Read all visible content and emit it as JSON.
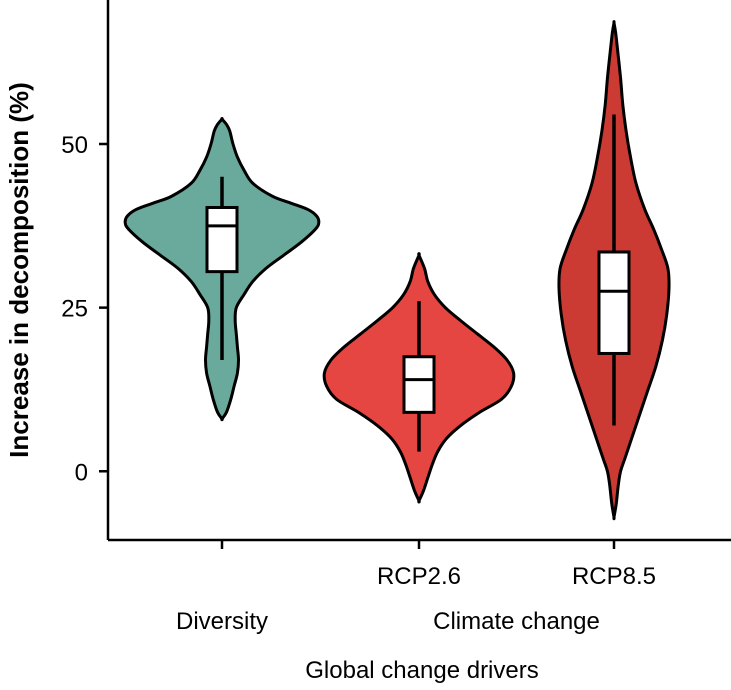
{
  "chart_data": {
    "type": "violin",
    "title": "",
    "ylabel": "Increase in decomposition (%)",
    "xlabel": "Global change drivers",
    "ylim": [
      -10.5,
      72
    ],
    "yticks": [
      0,
      25,
      50
    ],
    "group_labels": [
      {
        "label": "Diversity",
        "categories": [
          0
        ]
      },
      {
        "label": "Climate change",
        "categories": [
          1,
          2
        ]
      }
    ],
    "categories": [
      "",
      "RCP2.6",
      "RCP8.5"
    ],
    "violins": [
      {
        "name": "Diversity",
        "color": "#6aaa9c",
        "x": 0,
        "profile": [
          [
            8,
            0
          ],
          [
            9,
            0.04
          ],
          [
            11,
            0.08
          ],
          [
            13,
            0.11
          ],
          [
            15,
            0.14
          ],
          [
            17,
            0.15
          ],
          [
            19,
            0.14
          ],
          [
            21,
            0.13
          ],
          [
            23,
            0.12
          ],
          [
            25,
            0.13
          ],
          [
            27,
            0.2
          ],
          [
            29,
            0.28
          ],
          [
            31,
            0.4
          ],
          [
            33,
            0.56
          ],
          [
            35,
            0.72
          ],
          [
            37,
            0.85
          ],
          [
            38,
            0.88
          ],
          [
            39,
            0.86
          ],
          [
            40,
            0.78
          ],
          [
            41,
            0.62
          ],
          [
            42,
            0.46
          ],
          [
            44,
            0.28
          ],
          [
            46,
            0.2
          ],
          [
            48,
            0.14
          ],
          [
            50,
            0.1
          ],
          [
            52,
            0.07
          ],
          [
            53,
            0.04
          ],
          [
            53.8,
            0
          ]
        ],
        "box": {
          "min": 17,
          "q1": 30.5,
          "median": 37.5,
          "q3": 40.3,
          "max": 45
        }
      },
      {
        "name": "RCP2.6",
        "color": "#e54641",
        "x": 1,
        "profile": [
          [
            -4.5,
            0
          ],
          [
            -3,
            0.04
          ],
          [
            -1,
            0.08
          ],
          [
            1,
            0.12
          ],
          [
            3,
            0.17
          ],
          [
            5,
            0.25
          ],
          [
            7,
            0.38
          ],
          [
            9,
            0.55
          ],
          [
            11,
            0.75
          ],
          [
            13,
            0.84
          ],
          [
            15,
            0.86
          ],
          [
            17,
            0.8
          ],
          [
            19,
            0.68
          ],
          [
            21,
            0.53
          ],
          [
            23,
            0.38
          ],
          [
            25,
            0.24
          ],
          [
            27,
            0.14
          ],
          [
            29,
            0.08
          ],
          [
            31,
            0.05
          ],
          [
            33,
            0
          ]
        ],
        "box": {
          "min": 3,
          "q1": 9,
          "median": 14,
          "q3": 17.5,
          "max": 26
        }
      },
      {
        "name": "RCP8.5",
        "color": "#cc3a34",
        "x": 2,
        "profile": [
          [
            -7,
            0
          ],
          [
            -5,
            0.02
          ],
          [
            -2,
            0.04
          ],
          [
            0,
            0.06
          ],
          [
            2,
            0.1
          ],
          [
            5,
            0.16
          ],
          [
            8,
            0.22
          ],
          [
            12,
            0.3
          ],
          [
            16,
            0.38
          ],
          [
            20,
            0.44
          ],
          [
            24,
            0.48
          ],
          [
            28,
            0.5
          ],
          [
            31,
            0.49
          ],
          [
            34,
            0.43
          ],
          [
            37,
            0.36
          ],
          [
            40,
            0.28
          ],
          [
            44,
            0.2
          ],
          [
            48,
            0.15
          ],
          [
            52,
            0.11
          ],
          [
            56,
            0.08
          ],
          [
            60,
            0.06
          ],
          [
            64,
            0.035
          ],
          [
            67,
            0.015
          ],
          [
            68.5,
            0
          ]
        ],
        "box": {
          "min": 7,
          "q1": 18,
          "median": 27.5,
          "q3": 33.5,
          "max": 54.5
        }
      }
    ]
  }
}
